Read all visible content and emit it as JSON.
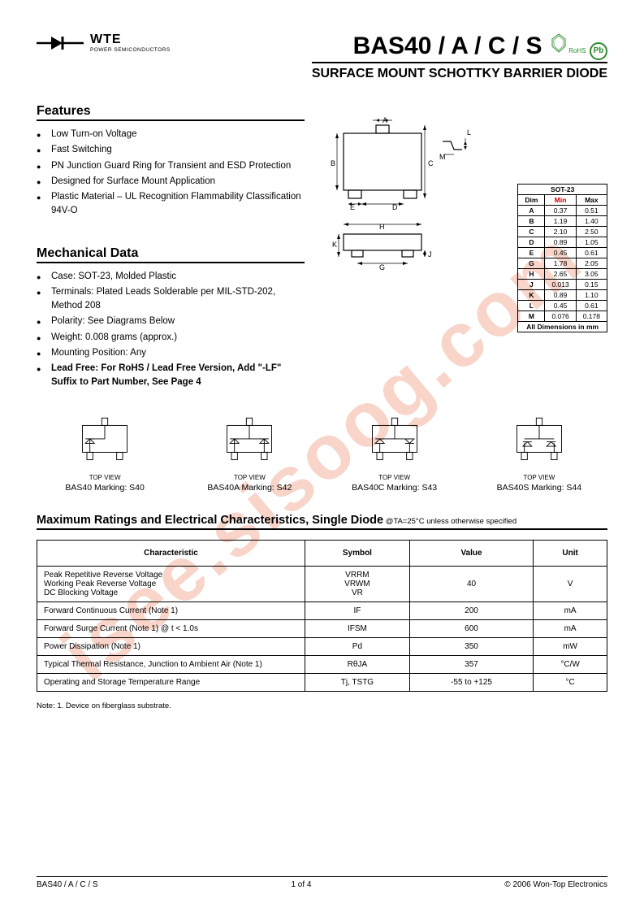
{
  "watermark": "isee.sisoog.com",
  "logo": {
    "brand": "WTE",
    "tagline": "POWER SEMICONDUCTORS"
  },
  "title": {
    "part": "BAS40 / A / C / S",
    "rohs": "RoHS",
    "pb": "Pb",
    "subtitle": "SURFACE MOUNT SCHOTTKY BARRIER DIODE"
  },
  "features": {
    "heading": "Features",
    "items": [
      "Low Turn-on Voltage",
      "Fast Switching",
      "PN Junction Guard Ring for Transient and ESD Protection",
      "Designed for Surface Mount Application",
      "Plastic Material – UL Recognition Flammability Classification 94V-O"
    ]
  },
  "mechdata": {
    "heading": "Mechanical Data",
    "items": [
      "Case: SOT-23, Molded Plastic",
      "Terminals: Plated Leads Solderable per MIL-STD-202, Method 208",
      "Polarity: See Diagrams Below",
      "Weight: 0.008 grams (approx.)",
      "Mounting Position: Any"
    ],
    "leadfree": "Lead Free: For RoHS / Lead Free Version, Add \"-LF\" Suffix to Part Number, See Page 4"
  },
  "dimtable": {
    "title": "SOT-23",
    "headers": [
      "Dim",
      "Min",
      "Max"
    ],
    "rows": [
      [
        "A",
        "0.37",
        "0.51"
      ],
      [
        "B",
        "1.19",
        "1.40"
      ],
      [
        "C",
        "2.10",
        "2.50"
      ],
      [
        "D",
        "0.89",
        "1.05"
      ],
      [
        "E",
        "0.45",
        "0.61"
      ],
      [
        "G",
        "1.78",
        "2.05"
      ],
      [
        "H",
        "2.65",
        "3.05"
      ],
      [
        "J",
        "0.013",
        "0.15"
      ],
      [
        "K",
        "0.89",
        "1.10"
      ],
      [
        "L",
        "0.45",
        "0.61"
      ],
      [
        "M",
        "0.076",
        "0.178"
      ]
    ],
    "footer": "All Dimensions in mm"
  },
  "variants": {
    "topview": "TOP VIEW",
    "items": [
      "BAS40 Marking: S40",
      "BAS40A Marking: S42",
      "BAS40C Marking: S43",
      "BAS40S Marking: S44"
    ]
  },
  "ratings": {
    "heading": "Maximum Ratings and Electrical Characteristics, Single Diode",
    "condition": " @TA=25°C unless otherwise specified",
    "headers": [
      "Characteristic",
      "Symbol",
      "Value",
      "Unit"
    ],
    "rows": [
      {
        "char": "Peak Repetitive Reverse Voltage\nWorking Peak Reverse Voltage\nDC Blocking Voltage",
        "sym": "VRRM\nVRWM\nVR",
        "val": "40",
        "unit": "V"
      },
      {
        "char": "Forward Continuous Current (Note 1)",
        "sym": "IF",
        "val": "200",
        "unit": "mA"
      },
      {
        "char": "Forward Surge Current (Note 1)                          @ t < 1.0s",
        "sym": "IFSM",
        "val": "600",
        "unit": "mA"
      },
      {
        "char": "Power Dissipation (Note 1)",
        "sym": "Pd",
        "val": "350",
        "unit": "mW"
      },
      {
        "char": "Typical Thermal Resistance, Junction to Ambient Air (Note 1)",
        "sym": "RθJA",
        "val": "357",
        "unit": "°C/W"
      },
      {
        "char": "Operating and Storage Temperature Range",
        "sym": "Tj, TSTG",
        "val": "-55 to +125",
        "unit": "°C"
      }
    ]
  },
  "note": "Note:  1. Device on fiberglass substrate.",
  "footer": {
    "left": "BAS40 / A / C / S",
    "center": "1 of 4",
    "right": "© 2006 Won-Top Electronics"
  },
  "colors": {
    "text": "#000000",
    "watermark": "rgba(230,100,60,0.28)",
    "rohs": "#2e8b2e"
  },
  "diagram_labels": [
    "A",
    "B",
    "C",
    "D",
    "E",
    "G",
    "H",
    "J",
    "K",
    "L",
    "M"
  ]
}
